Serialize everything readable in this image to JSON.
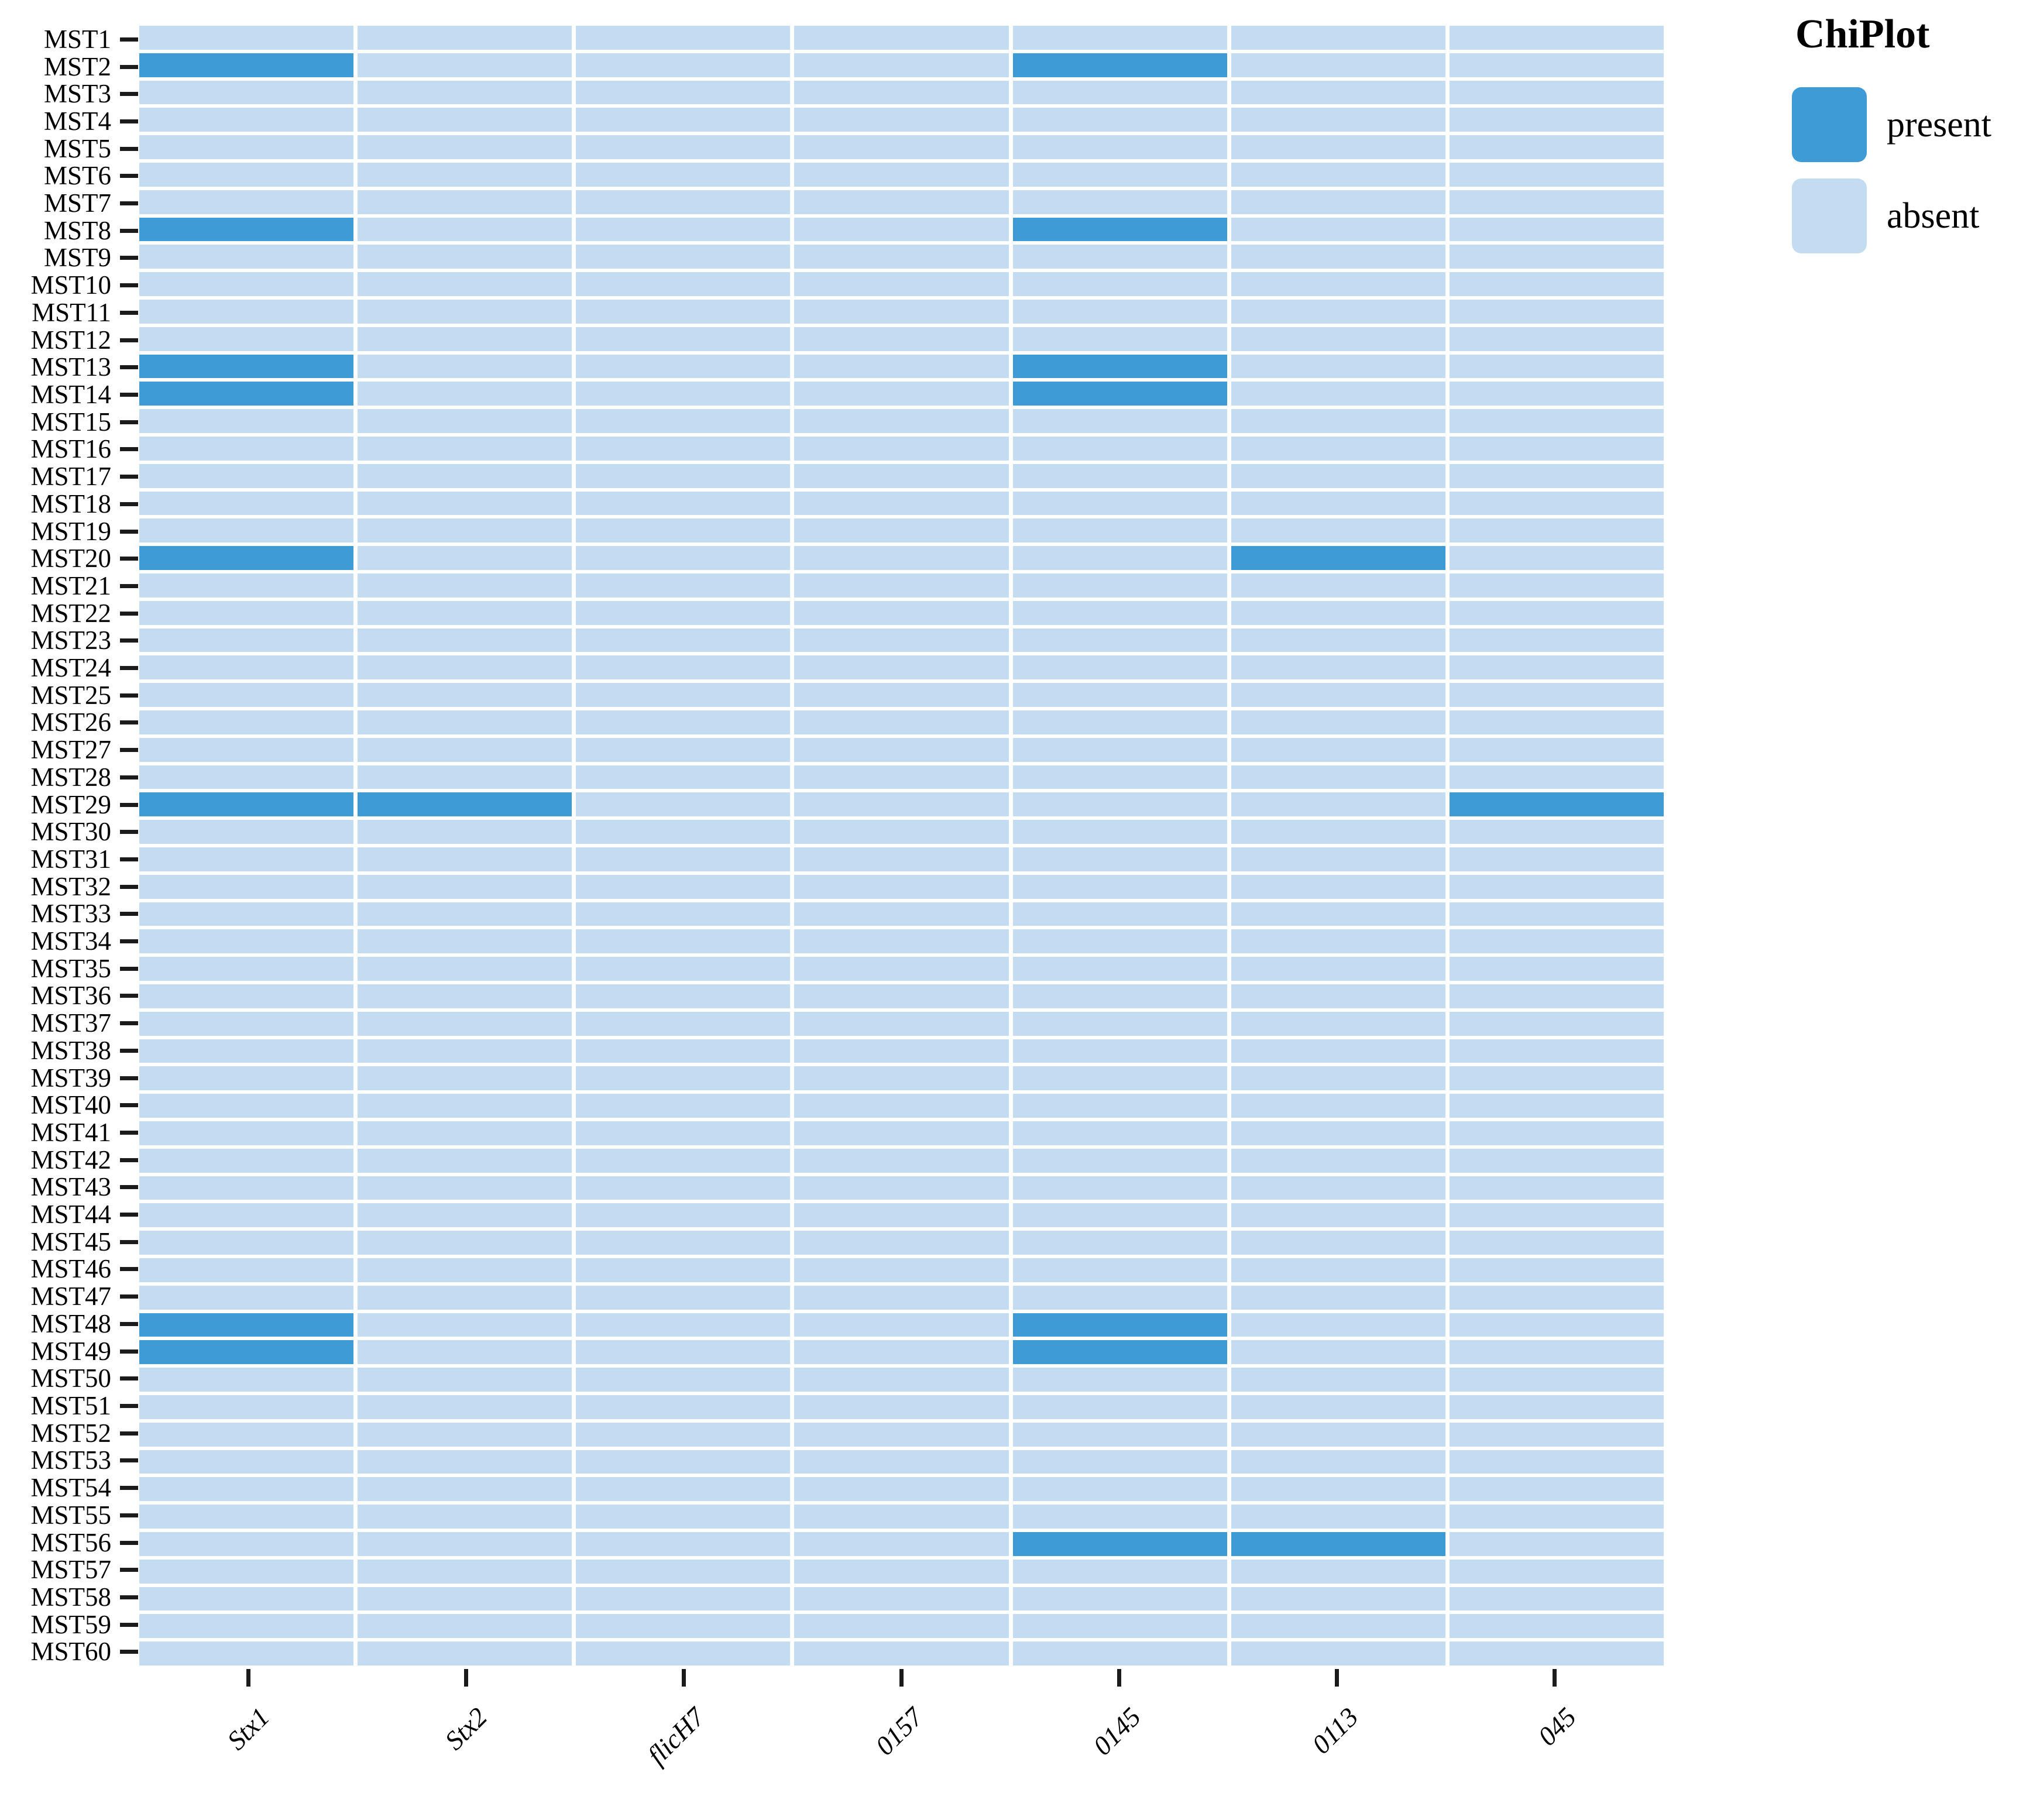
{
  "chart_data": {
    "type": "heatmap",
    "rows": [
      "MST1",
      "MST2",
      "MST3",
      "MST4",
      "MST5",
      "MST6",
      "MST7",
      "MST8",
      "MST9",
      "MST10",
      "MST11",
      "MST12",
      "MST13",
      "MST14",
      "MST15",
      "MST16",
      "MST17",
      "MST18",
      "MST19",
      "MST20",
      "MST21",
      "MST22",
      "MST23",
      "MST24",
      "MST25",
      "MST26",
      "MST27",
      "MST28",
      "MST29",
      "MST30",
      "MST31",
      "MST32",
      "MST33",
      "MST34",
      "MST35",
      "MST36",
      "MST37",
      "MST38",
      "MST39",
      "MST40",
      "MST41",
      "MST42",
      "MST43",
      "MST44",
      "MST45",
      "MST46",
      "MST47",
      "MST48",
      "MST49",
      "MST50",
      "MST51",
      "MST52",
      "MST53",
      "MST54",
      "MST55",
      "MST56",
      "MST57",
      "MST58",
      "MST59",
      "MST60"
    ],
    "columns": [
      "Stx1",
      "Stx2",
      "flicH7",
      "0157",
      "0145",
      "0113",
      "045"
    ],
    "value_encoding": {
      "present": 1,
      "absent": 0
    },
    "present_cells": [
      [
        "MST2",
        "Stx1"
      ],
      [
        "MST2",
        "0145"
      ],
      [
        "MST8",
        "Stx1"
      ],
      [
        "MST8",
        "0145"
      ],
      [
        "MST13",
        "Stx1"
      ],
      [
        "MST13",
        "0145"
      ],
      [
        "MST14",
        "Stx1"
      ],
      [
        "MST14",
        "0145"
      ],
      [
        "MST20",
        "Stx1"
      ],
      [
        "MST20",
        "0113"
      ],
      [
        "MST29",
        "Stx1"
      ],
      [
        "MST29",
        "Stx2"
      ],
      [
        "MST29",
        "045"
      ],
      [
        "MST48",
        "Stx1"
      ],
      [
        "MST48",
        "0145"
      ],
      [
        "MST49",
        "Stx1"
      ],
      [
        "MST49",
        "0145"
      ],
      [
        "MST56",
        "0145"
      ],
      [
        "MST56",
        "0113"
      ]
    ],
    "legend": {
      "title": "ChiPlot",
      "position": "top-right",
      "entries": [
        {
          "label": "present",
          "color": "#3f9bd5"
        },
        {
          "label": "absent",
          "color": "#c3dcf1"
        }
      ]
    },
    "grid": false
  }
}
